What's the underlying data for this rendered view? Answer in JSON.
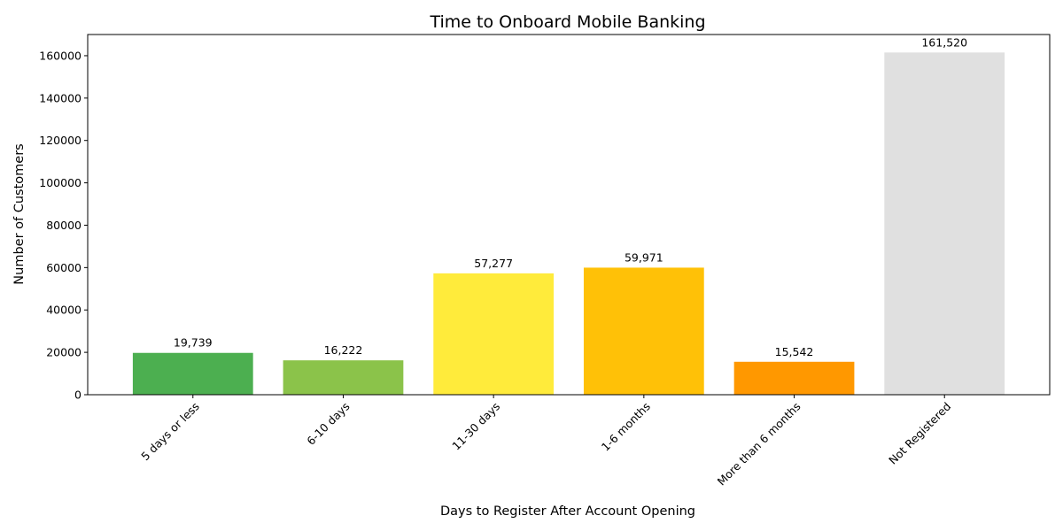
{
  "chart_data": {
    "type": "bar",
    "title": "Time to Onboard Mobile Banking",
    "xlabel": "Days to Register After Account Opening",
    "ylabel": "Number of Customers",
    "categories": [
      "5 days or less",
      "6-10 days",
      "11-30 days",
      "1-6 months",
      "More than 6 months",
      "Not Registered"
    ],
    "values": [
      19739,
      16222,
      57277,
      59971,
      15542,
      161520
    ],
    "data_labels": [
      "19,739",
      "16,222",
      "57,277",
      "59,971",
      "15,542",
      "161,520"
    ],
    "colors": [
      "#4caf50",
      "#8bc34a",
      "#ffeb3b",
      "#ffc107",
      "#ff9800",
      "#e0e0e0"
    ],
    "ylim": [
      0,
      170000
    ],
    "yticks": [
      0,
      20000,
      40000,
      60000,
      80000,
      100000,
      120000,
      140000,
      160000
    ],
    "ytick_labels": [
      "0",
      "20000",
      "40000",
      "60000",
      "80000",
      "100000",
      "120000",
      "140000",
      "160000"
    ],
    "grid": false,
    "legend": "none"
  }
}
